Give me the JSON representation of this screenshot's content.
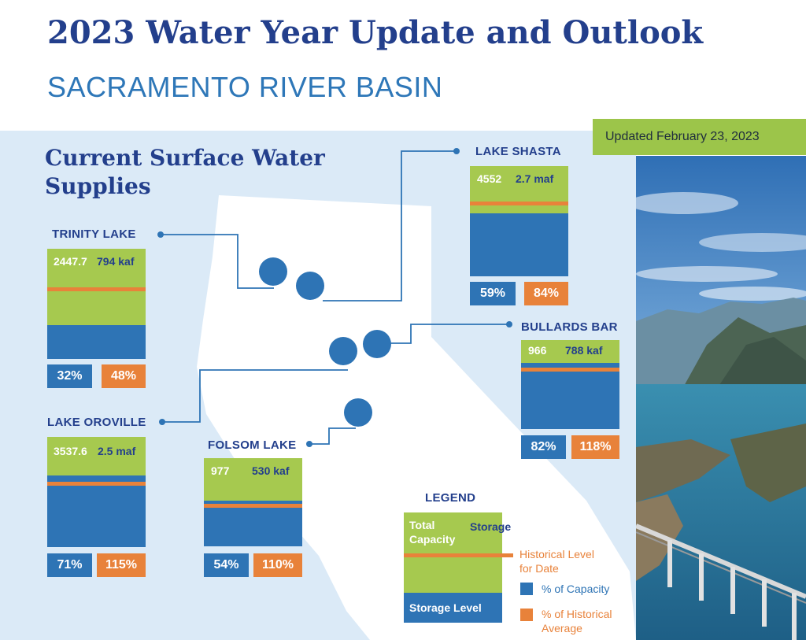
{
  "header": {
    "title": "2023 Water Year Update and Outlook",
    "subtitle": "SACRAMENTO RIVER BASIN",
    "updated": "Updated February 23, 2023"
  },
  "section_title_line1": "Current Surface Water",
  "section_title_line2": "Supplies",
  "reservoirs": {
    "trinity": {
      "name": "TRINITY LAKE",
      "capacity_value": "2447.7",
      "storage_value": "794 kaf",
      "pct_capacity": "32%",
      "pct_historical": "48%"
    },
    "shasta": {
      "name": "LAKE SHASTA",
      "capacity_value": "4552",
      "storage_value": "2.7 maf",
      "pct_capacity": "59%",
      "pct_historical": "84%"
    },
    "bullards": {
      "name": "BULLARDS BAR",
      "capacity_value": "966",
      "storage_value": "788 kaf",
      "pct_capacity": "82%",
      "pct_historical": "118%"
    },
    "oroville": {
      "name": "LAKE OROVILLE",
      "capacity_value": "3537.6",
      "storage_value": "2.5 maf",
      "pct_capacity": "71%",
      "pct_historical": "115%"
    },
    "folsom": {
      "name": "FOLSOM LAKE",
      "capacity_value": "977",
      "storage_value": "530 kaf",
      "pct_capacity": "54%",
      "pct_historical": "110%"
    }
  },
  "legend": {
    "title": "LEGEND",
    "total_capacity_line1": "Total",
    "total_capacity_line2": "Capacity",
    "storage": "Storage",
    "historical_line1": "Historical Level",
    "historical_line2": "for Date",
    "storage_level": "Storage Level",
    "pct_capacity": "% of Capacity",
    "pct_historical_line1": "% of Historical",
    "pct_historical_line2": "Average"
  },
  "colors": {
    "navy": "#233f8c",
    "blue": "#2e74b5",
    "green": "#a6c94f",
    "orange": "#e8823a",
    "panel": "#dbeaf7"
  }
}
